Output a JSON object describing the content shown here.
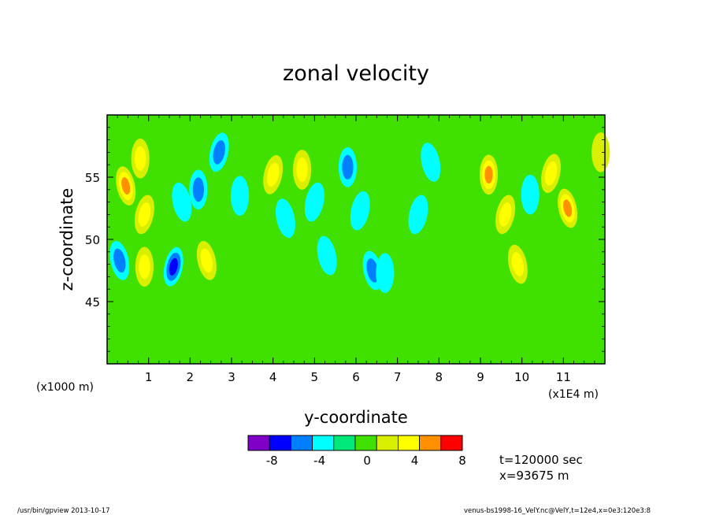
{
  "chart_data": {
    "type": "heatmap",
    "title": "zonal velocity",
    "xlabel": "y-coordinate",
    "ylabel": "z-coordinate",
    "x_unit_left": "(x1000 m)",
    "x_unit_right": "(x1E4 m)",
    "xlim": [
      0,
      12
    ],
    "ylim": [
      40,
      60
    ],
    "x_ticks": [
      "1",
      "2",
      "3",
      "4",
      "5",
      "6",
      "7",
      "8",
      "9",
      "10",
      "11"
    ],
    "y_ticks": [
      "45",
      "50",
      "55"
    ],
    "levels": [
      -10,
      -8,
      -6,
      -4,
      -2,
      0,
      2,
      4,
      6,
      8,
      10
    ],
    "colorbar_labels": [
      "-8",
      "-4",
      "0",
      "4",
      "8"
    ],
    "colors": [
      "#8000c8",
      "#0000ff",
      "#0080ff",
      "#00ffff",
      "#00e878",
      "#40e000",
      "#d8f000",
      "#ffff00",
      "#ff9000",
      "#ff0000",
      "#ff9090"
    ],
    "background_level_color": "#40e000",
    "features": [
      {
        "x": 0.45,
        "z": 54.3,
        "value": 6.5
      },
      {
        "x": 0.8,
        "z": 56.5,
        "value": 4.5
      },
      {
        "x": 0.9,
        "z": 52.0,
        "value": 4.0
      },
      {
        "x": 0.3,
        "z": 48.3,
        "value": -4.5
      },
      {
        "x": 0.9,
        "z": 47.8,
        "value": 4.0
      },
      {
        "x": 1.6,
        "z": 47.8,
        "value": -6.0
      },
      {
        "x": 1.8,
        "z": 53.0,
        "value": -3.0
      },
      {
        "x": 2.2,
        "z": 54.0,
        "value": -4.5
      },
      {
        "x": 2.7,
        "z": 57.0,
        "value": -4.5
      },
      {
        "x": 2.4,
        "z": 48.3,
        "value": 4.0
      },
      {
        "x": 3.2,
        "z": 53.5,
        "value": -2.5
      },
      {
        "x": 4.0,
        "z": 55.2,
        "value": 4.0
      },
      {
        "x": 4.3,
        "z": 51.7,
        "value": -3.5
      },
      {
        "x": 4.7,
        "z": 55.6,
        "value": 5.0
      },
      {
        "x": 5.0,
        "z": 53.0,
        "value": -2.5
      },
      {
        "x": 5.3,
        "z": 48.7,
        "value": -2.5
      },
      {
        "x": 5.8,
        "z": 55.8,
        "value": -5.5
      },
      {
        "x": 6.1,
        "z": 52.3,
        "value": -2.5
      },
      {
        "x": 6.4,
        "z": 47.5,
        "value": -4.0
      },
      {
        "x": 6.7,
        "z": 47.3,
        "value": -3.0
      },
      {
        "x": 7.5,
        "z": 52.0,
        "value": -2.5
      },
      {
        "x": 7.8,
        "z": 56.2,
        "value": -3.0
      },
      {
        "x": 9.2,
        "z": 55.2,
        "value": 6.5
      },
      {
        "x": 9.6,
        "z": 52.0,
        "value": 5.0
      },
      {
        "x": 9.9,
        "z": 48.0,
        "value": 4.0
      },
      {
        "x": 10.2,
        "z": 53.6,
        "value": -2.5
      },
      {
        "x": 10.7,
        "z": 55.3,
        "value": 4.5
      },
      {
        "x": 11.1,
        "z": 52.5,
        "value": 6.0
      },
      {
        "x": 11.9,
        "z": 57.0,
        "value": 3.5
      }
    ],
    "annotations": [
      "t=120000 sec",
      "x=93675 m"
    ]
  },
  "footer": {
    "left": "/usr/bin/gpview   2013-10-17",
    "right": "venus-bs1998-16_VelY.nc@VelY,t=12e4,x=0e3:120e3:8"
  }
}
